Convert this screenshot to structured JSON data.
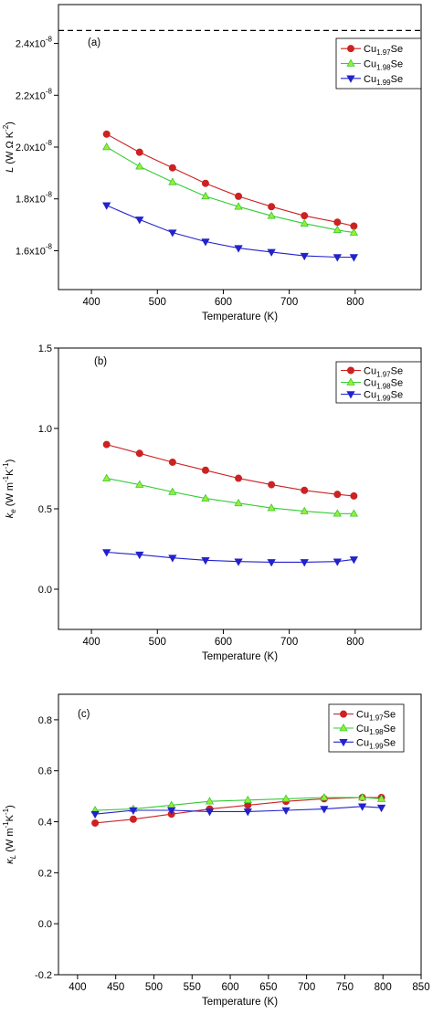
{
  "chart_data": [
    {
      "type": "line",
      "panel_label": "(a)",
      "xlabel": "Temperature (K)",
      "ylabel": {
        "sym": "L",
        "pre": " (W Ω K",
        "sup": "-2",
        "post": ")"
      },
      "xlim": [
        350,
        900
      ],
      "ylim": [
        1.45e-08,
        2.55e-08
      ],
      "xticks": [
        400,
        500,
        600,
        700,
        800
      ],
      "yticks": [
        {
          "value": 1.6e-08,
          "mant": "1.6x10",
          "exp": "-8"
        },
        {
          "value": 1.8e-08,
          "mant": "1.8x10",
          "exp": "-8"
        },
        {
          "value": 2e-08,
          "mant": "2.0x10",
          "exp": "-8"
        },
        {
          "value": 2.2e-08,
          "mant": "2.2x10",
          "exp": "-8"
        },
        {
          "value": 2.4e-08,
          "mant": "2.4x10",
          "exp": "-8"
        }
      ],
      "reference_line": {
        "y": 2.45e-08,
        "style": "dashed"
      },
      "legend": "top-right",
      "series": [
        {
          "name": "Cu1.97Se",
          "pre": "Cu",
          "sub": "1.97",
          "post": "Se",
          "marker": "circle",
          "color": "#cc2222",
          "markerColor": "#cc2222",
          "x": [
            423,
            473,
            523,
            573,
            623,
            673,
            723,
            773,
            798
          ],
          "y": [
            2.05e-08,
            1.98e-08,
            1.92e-08,
            1.86e-08,
            1.81e-08,
            1.77e-08,
            1.735e-08,
            1.71e-08,
            1.695e-08
          ]
        },
        {
          "name": "Cu1.98Se",
          "pre": "Cu",
          "sub": "1.98",
          "post": "Se",
          "marker": "triangle-up",
          "color": "#33cc33",
          "markerColor": "#99ee33",
          "x": [
            423,
            473,
            523,
            573,
            623,
            673,
            723,
            773,
            798
          ],
          "y": [
            2e-08,
            1.925e-08,
            1.865e-08,
            1.81e-08,
            1.77e-08,
            1.735e-08,
            1.705e-08,
            1.68e-08,
            1.67e-08
          ]
        },
        {
          "name": "Cu1.99Se",
          "pre": "Cu",
          "sub": "1.99",
          "post": "Se",
          "marker": "triangle-down",
          "color": "#2222cc",
          "markerColor": "#2222cc",
          "x": [
            423,
            473,
            523,
            573,
            623,
            673,
            723,
            773,
            798
          ],
          "y": [
            1.775e-08,
            1.72e-08,
            1.67e-08,
            1.635e-08,
            1.61e-08,
            1.595e-08,
            1.58e-08,
            1.575e-08,
            1.575e-08
          ]
        }
      ]
    },
    {
      "type": "line",
      "panel_label": "(b)",
      "xlabel": "Temperature (K)",
      "ylabel": {
        "sym": "k",
        "symsub": "e",
        "pre": " (W m",
        "sup": "-1",
        "mid": "K",
        "sup2": "-1",
        "post": ")"
      },
      "xlim": [
        350,
        900
      ],
      "ylim": [
        -0.25,
        1.5
      ],
      "xticks": [
        400,
        500,
        600,
        700,
        800
      ],
      "yticks": [
        {
          "value": 0.0,
          "label": "0.0"
        },
        {
          "value": 0.5,
          "label": "0.5"
        },
        {
          "value": 1.0,
          "label": "1.0"
        },
        {
          "value": 1.5,
          "label": "1.5"
        }
      ],
      "legend": "top-right",
      "series": [
        {
          "name": "Cu1.97Se",
          "pre": "Cu",
          "sub": "1.97",
          "post": "Se",
          "marker": "circle",
          "color": "#cc2222",
          "markerColor": "#cc2222",
          "x": [
            423,
            473,
            523,
            573,
            623,
            673,
            723,
            773,
            798
          ],
          "y": [
            0.9,
            0.845,
            0.79,
            0.74,
            0.69,
            0.65,
            0.615,
            0.59,
            0.58
          ]
        },
        {
          "name": "Cu1.98Se",
          "pre": "Cu",
          "sub": "1.98",
          "post": "Se",
          "marker": "triangle-up",
          "color": "#33cc33",
          "markerColor": "#99ee33",
          "x": [
            423,
            473,
            523,
            573,
            623,
            673,
            723,
            773,
            798
          ],
          "y": [
            0.69,
            0.65,
            0.605,
            0.565,
            0.535,
            0.505,
            0.485,
            0.47,
            0.47
          ]
        },
        {
          "name": "Cu1.99Se",
          "pre": "Cu",
          "sub": "1.99",
          "post": "Se",
          "marker": "triangle-down",
          "color": "#2222cc",
          "markerColor": "#2222cc",
          "x": [
            423,
            473,
            523,
            573,
            623,
            673,
            723,
            773,
            798
          ],
          "y": [
            0.23,
            0.215,
            0.195,
            0.18,
            0.172,
            0.168,
            0.168,
            0.172,
            0.185
          ]
        }
      ]
    },
    {
      "type": "line",
      "panel_label": "(c)",
      "xlabel": "Temperature (K)",
      "ylabel": {
        "sym": "κ",
        "symsub": "L",
        "pre": " (W m",
        "sup": "-1",
        "mid": "K",
        "sup2": "-1",
        "post": ")"
      },
      "xlim": [
        375,
        850
      ],
      "ylim": [
        -0.2,
        0.9
      ],
      "xticks": [
        400,
        450,
        500,
        550,
        600,
        650,
        700,
        750,
        800,
        850
      ],
      "yticks": [
        {
          "value": -0.2,
          "label": "-0.2"
        },
        {
          "value": 0.0,
          "label": "0.0"
        },
        {
          "value": 0.2,
          "label": "0.2"
        },
        {
          "value": 0.4,
          "label": "0.4"
        },
        {
          "value": 0.6,
          "label": "0.6"
        },
        {
          "value": 0.8,
          "label": "0.8"
        }
      ],
      "legend": "top-right",
      "series": [
        {
          "name": "Cu1.97Se",
          "pre": "Cu",
          "sub": "1.97",
          "post": "Se",
          "marker": "circle",
          "color": "#cc2222",
          "markerColor": "#cc2222",
          "x": [
            423,
            473,
            523,
            573,
            623,
            673,
            723,
            773,
            798
          ],
          "y": [
            0.395,
            0.41,
            0.43,
            0.45,
            0.465,
            0.48,
            0.49,
            0.495,
            0.495
          ]
        },
        {
          "name": "Cu1.98Se",
          "pre": "Cu",
          "sub": "1.98",
          "post": "Se",
          "marker": "triangle-up",
          "color": "#33cc33",
          "markerColor": "#99ee33",
          "x": [
            423,
            473,
            523,
            573,
            623,
            673,
            723,
            773,
            798
          ],
          "y": [
            0.445,
            0.45,
            0.465,
            0.48,
            0.485,
            0.49,
            0.495,
            0.495,
            0.49
          ]
        },
        {
          "name": "Cu1.99Se",
          "pre": "Cu",
          "sub": "1.99",
          "post": "Se",
          "marker": "triangle-down",
          "color": "#2222cc",
          "markerColor": "#2222cc",
          "x": [
            423,
            473,
            523,
            573,
            623,
            673,
            723,
            773,
            798
          ],
          "y": [
            0.43,
            0.445,
            0.445,
            0.44,
            0.44,
            0.445,
            0.45,
            0.46,
            0.455
          ]
        }
      ]
    }
  ]
}
